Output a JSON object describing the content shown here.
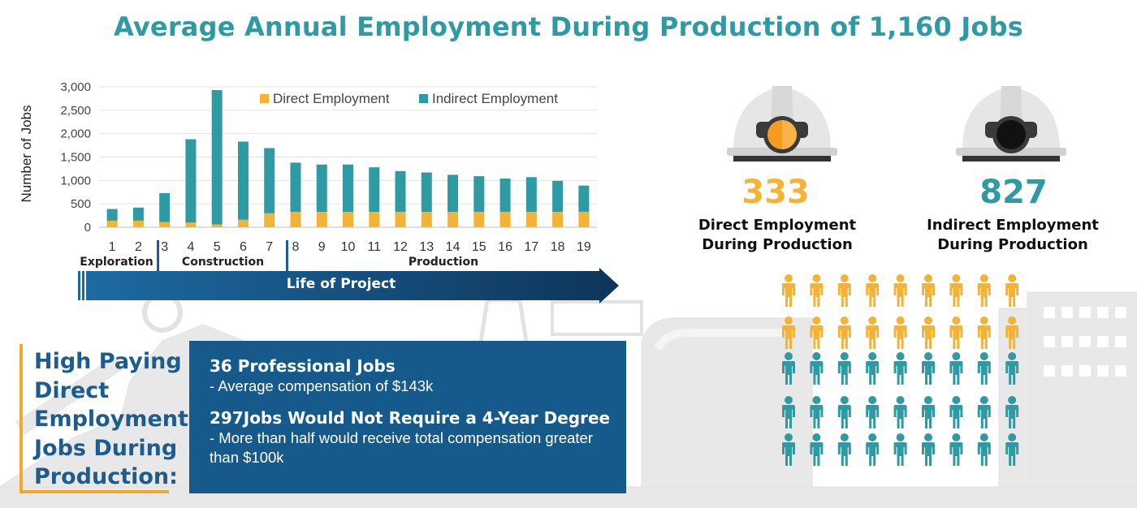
{
  "title": "Average Annual Employment During Production of 1,160 Jobs",
  "colors": {
    "direct": "#f5b335",
    "indirect": "#2e9aa3",
    "title": "#2e9aa3",
    "dark_blue": "#155a8a",
    "orange_bracket": "#f2a92b",
    "background_art": "#e6e6e6"
  },
  "chart_data": {
    "type": "bar",
    "stacked": true,
    "categories": [
      "1",
      "2",
      "3",
      "4",
      "5",
      "6",
      "7",
      "8",
      "9",
      "10",
      "11",
      "12",
      "13",
      "14",
      "15",
      "16",
      "17",
      "18",
      "19"
    ],
    "series": [
      {
        "name": "Direct Employment",
        "color": "#f5b335",
        "values": [
          140,
          140,
          110,
          100,
          60,
          160,
          300,
          330,
          330,
          330,
          330,
          330,
          330,
          330,
          330,
          330,
          330,
          330,
          330
        ]
      },
      {
        "name": "Indirect Employment",
        "color": "#2e9aa3",
        "values": [
          250,
          280,
          620,
          1780,
          2870,
          1670,
          1390,
          1050,
          1010,
          1010,
          950,
          870,
          840,
          790,
          760,
          710,
          740,
          660,
          560
        ]
      }
    ],
    "ylabel": "Number of Jobs",
    "xlabel": "",
    "ylim": [
      0,
      3000
    ],
    "yticks": [
      "3,000",
      "2,500",
      "2,000",
      "1,500",
      "1,000",
      "500",
      "0"
    ],
    "ytick_values": [
      3000,
      2500,
      2000,
      1500,
      1000,
      500,
      0
    ],
    "grid": true,
    "legend": "top-right"
  },
  "phases": {
    "exploration": "Exploration",
    "construction": "Construction",
    "production": "Production"
  },
  "timeline_label": "Life of Project",
  "high_paying": {
    "text": "High Paying Direct Employment Jobs During Production:"
  },
  "info": {
    "item1_title": "36 Professional Jobs",
    "item1_desc": "- Average compensation of $143k",
    "item2_title": "297Jobs Would Not Require a 4-Year Degree",
    "item2_desc": "- More than half would receive total compensation greater than $100k"
  },
  "direct_stat": {
    "value": "333",
    "label_line1": "Direct Employment",
    "label_line2": "During Production",
    "color": "#f5b335",
    "helmet_lamp": "orange-lamp"
  },
  "indirect_stat": {
    "value": "827",
    "label_line1": "Indirect Employment",
    "label_line2": "During Production",
    "color": "#2e9aa3",
    "helmet_lamp": "black-lamp"
  },
  "people_grid": {
    "rows": [
      {
        "count": 9,
        "color": "#f5b335"
      },
      {
        "count": 9,
        "color": "#f5b335"
      },
      {
        "count": 9,
        "color": "#2e9aa3"
      },
      {
        "count": 9,
        "color": "#2e9aa3"
      },
      {
        "count": 9,
        "color": "#2e9aa3"
      }
    ],
    "icon": "person-icon"
  }
}
